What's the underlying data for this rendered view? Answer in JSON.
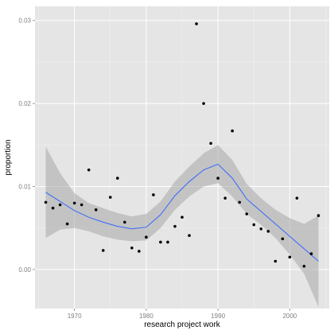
{
  "chart_data": {
    "type": "scatter",
    "title": "",
    "xlabel": "research project work",
    "ylabel": "proportion",
    "xlim": [
      1964.5,
      2005.5
    ],
    "ylim": [
      -0.0047,
      0.0317
    ],
    "x_ticks": [
      1970,
      1980,
      1990,
      2000
    ],
    "x_tick_labels": [
      "1970",
      "1980",
      "1990",
      "2000"
    ],
    "y_ticks": [
      0.0,
      0.01,
      0.02,
      0.03
    ],
    "y_tick_labels": [
      "0.00",
      "0.01",
      "0.02",
      "0.03"
    ],
    "grid": true,
    "legend": "none",
    "colors": {
      "panel_background": "#e5e5e5",
      "grid_major": "#ffffff",
      "grid_minor": "#f2f2f2",
      "points": "#000000",
      "smooth_line": "#3366ff",
      "confidence_band": "#a8a8a8"
    },
    "points": [
      {
        "x": 1966,
        "y": 0.0081
      },
      {
        "x": 1967,
        "y": 0.0074
      },
      {
        "x": 1968,
        "y": 0.0078
      },
      {
        "x": 1969,
        "y": 0.0055
      },
      {
        "x": 1970,
        "y": 0.008
      },
      {
        "x": 1971,
        "y": 0.0078
      },
      {
        "x": 1972,
        "y": 0.012
      },
      {
        "x": 1973,
        "y": 0.0072
      },
      {
        "x": 1974,
        "y": 0.0023
      },
      {
        "x": 1975,
        "y": 0.0087
      },
      {
        "x": 1976,
        "y": 0.011
      },
      {
        "x": 1977,
        "y": 0.0057
      },
      {
        "x": 1978,
        "y": 0.0026
      },
      {
        "x": 1979,
        "y": 0.0022
      },
      {
        "x": 1980,
        "y": 0.0039
      },
      {
        "x": 1981,
        "y": 0.009
      },
      {
        "x": 1982,
        "y": 0.0033
      },
      {
        "x": 1983,
        "y": 0.0033
      },
      {
        "x": 1984,
        "y": 0.0052
      },
      {
        "x": 1985,
        "y": 0.0063
      },
      {
        "x": 1986,
        "y": 0.0041
      },
      {
        "x": 1987,
        "y": 0.0296
      },
      {
        "x": 1988,
        "y": 0.02
      },
      {
        "x": 1989,
        "y": 0.0152
      },
      {
        "x": 1990,
        "y": 0.011
      },
      {
        "x": 1991,
        "y": 0.0086
      },
      {
        "x": 1992,
        "y": 0.0167
      },
      {
        "x": 1993,
        "y": 0.0081
      },
      {
        "x": 1994,
        "y": 0.0067
      },
      {
        "x": 1995,
        "y": 0.0054
      },
      {
        "x": 1996,
        "y": 0.0049
      },
      {
        "x": 1997,
        "y": 0.0046
      },
      {
        "x": 1998,
        "y": 0.001
      },
      {
        "x": 1999,
        "y": 0.0037
      },
      {
        "x": 2000,
        "y": 0.0015
      },
      {
        "x": 2001,
        "y": 0.0086
      },
      {
        "x": 2002,
        "y": 0.0004
      },
      {
        "x": 2003,
        "y": 0.0019
      },
      {
        "x": 2004,
        "y": 0.0065
      }
    ],
    "smooth": {
      "x": [
        1966,
        1968,
        1970,
        1972,
        1974,
        1976,
        1978,
        1980,
        1982,
        1984,
        1986,
        1988,
        1990,
        1992,
        1994,
        1996,
        1998,
        2000,
        2002,
        2004
      ],
      "y": [
        0.0093,
        0.0082,
        0.0071,
        0.0063,
        0.0057,
        0.0052,
        0.0049,
        0.0051,
        0.0066,
        0.0089,
        0.0106,
        0.012,
        0.0127,
        0.011,
        0.0085,
        0.007,
        0.0055,
        0.004,
        0.0025,
        0.001
      ],
      "lower": [
        0.0038,
        0.0048,
        0.005,
        0.0046,
        0.004,
        0.0036,
        0.0034,
        0.0035,
        0.005,
        0.0072,
        0.0088,
        0.01,
        0.0104,
        0.0088,
        0.0067,
        0.0054,
        0.0038,
        0.0018,
        -0.0005,
        -0.0045
      ],
      "upper": [
        0.0148,
        0.0116,
        0.0092,
        0.008,
        0.0074,
        0.0068,
        0.0064,
        0.0067,
        0.0082,
        0.0106,
        0.0124,
        0.014,
        0.015,
        0.0132,
        0.0103,
        0.0086,
        0.0072,
        0.0062,
        0.0055,
        0.0065
      ]
    }
  }
}
